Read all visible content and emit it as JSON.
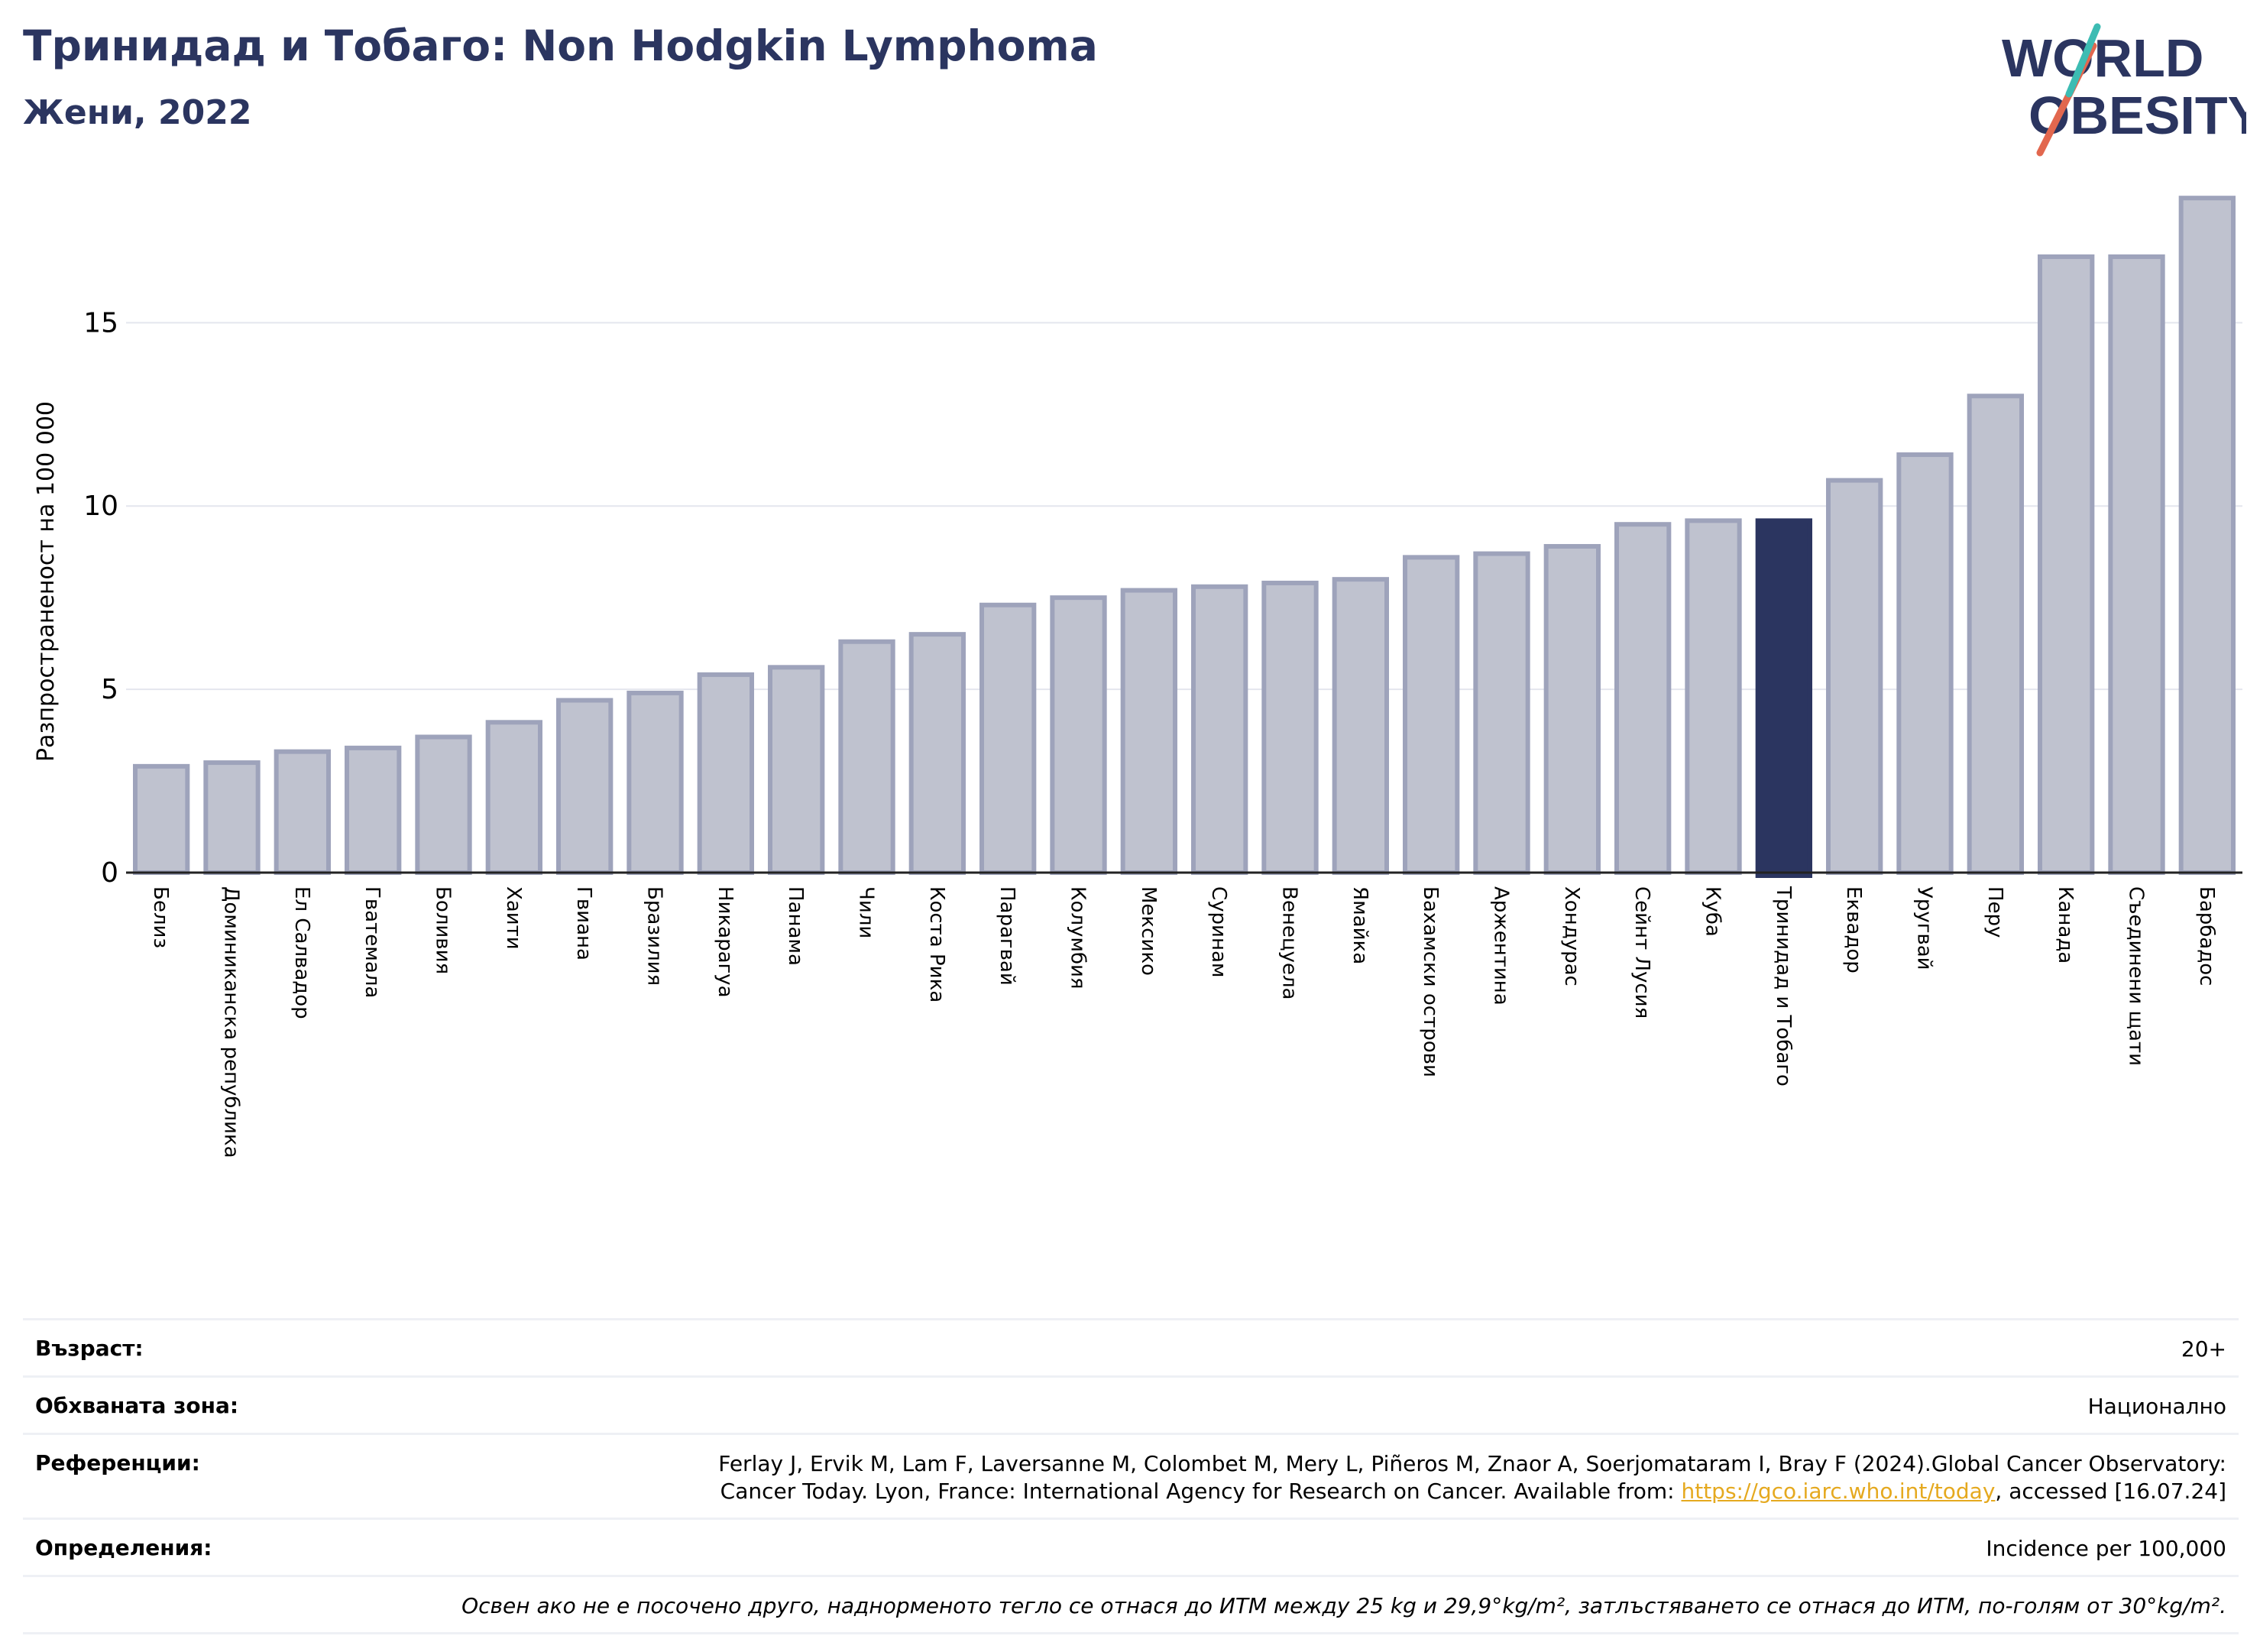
{
  "title": "Тринидад и Тобаго: Non Hodgkin Lymphoma",
  "subtitle": "Жени, 2022",
  "logo": {
    "line1": "WORLD",
    "line2": "OBESITY"
  },
  "colors": {
    "bar": "#bfc2cf",
    "bar_edge": "#9ea3bb",
    "highlight": "#2b3560",
    "grid": "#e4e6ee",
    "title": "#2b3560",
    "link": "#e5a91f"
  },
  "chart_data": {
    "type": "bar",
    "ylabel": "Разпространеност  на 100 000",
    "ylim": [
      0,
      18.8
    ],
    "yticks": [
      0,
      5,
      10,
      15
    ],
    "grid": true,
    "highlight": "Тринидад и Тобаго",
    "categories": [
      "Белиз",
      "Доминиканска република",
      "Ел Салвадор",
      "Гватемала",
      "Боливия",
      "Хаити",
      "Гвиана",
      "Бразилия",
      "Никарагуа",
      "Панама",
      "Чили",
      "Коста Рика",
      "Парагвай",
      "Колумбия",
      "Мексико",
      "Суринам",
      "Венецуела",
      "Ямайка",
      "Бахамски острови",
      "Аржентина",
      "Хондурас",
      "Сейнт Лусия",
      "Куба",
      "Тринидад и Тобаго",
      "Еквадор",
      "Уругвай",
      "Перу",
      "Канада",
      "Съединени щати",
      "Барбадос"
    ],
    "values": [
      2.9,
      3.0,
      3.3,
      3.4,
      3.7,
      4.1,
      4.7,
      4.9,
      5.4,
      5.6,
      6.3,
      6.5,
      7.3,
      7.5,
      7.7,
      7.8,
      7.9,
      8.0,
      8.6,
      8.7,
      8.9,
      9.5,
      9.6,
      9.6,
      10.7,
      11.4,
      13.0,
      16.8,
      16.8,
      18.4
    ]
  },
  "info": {
    "age_label": "Възраст:",
    "age_value": "20+",
    "area_label": "Обхваната зона:",
    "area_value": "Национално",
    "ref_label": "Референции:",
    "ref_text_1": "Ferlay J, Ervik M, Lam F, Laversanne M, Colombet M, Mery L, Piñeros M, Znaor A, Soerjomataram I, Bray F (2024).Global Cancer Observatory:",
    "ref_text_2": "Cancer Today. Lyon, France: International Agency for Research on Cancer. Available from: ",
    "ref_link": "https://gco.iarc.who.int/today",
    "ref_text_3": ", accessed [16.07.24]",
    "def_label": "Определения:",
    "def_value": "Incidence per 100,000",
    "note": "Освен ако не е посочено друго, наднормeното тегло се отнася до ИТМ между 25 kg и 29,9°kg/m², затлъстяването се отнася до ИТМ, по-голям от 30°kg/m²."
  }
}
